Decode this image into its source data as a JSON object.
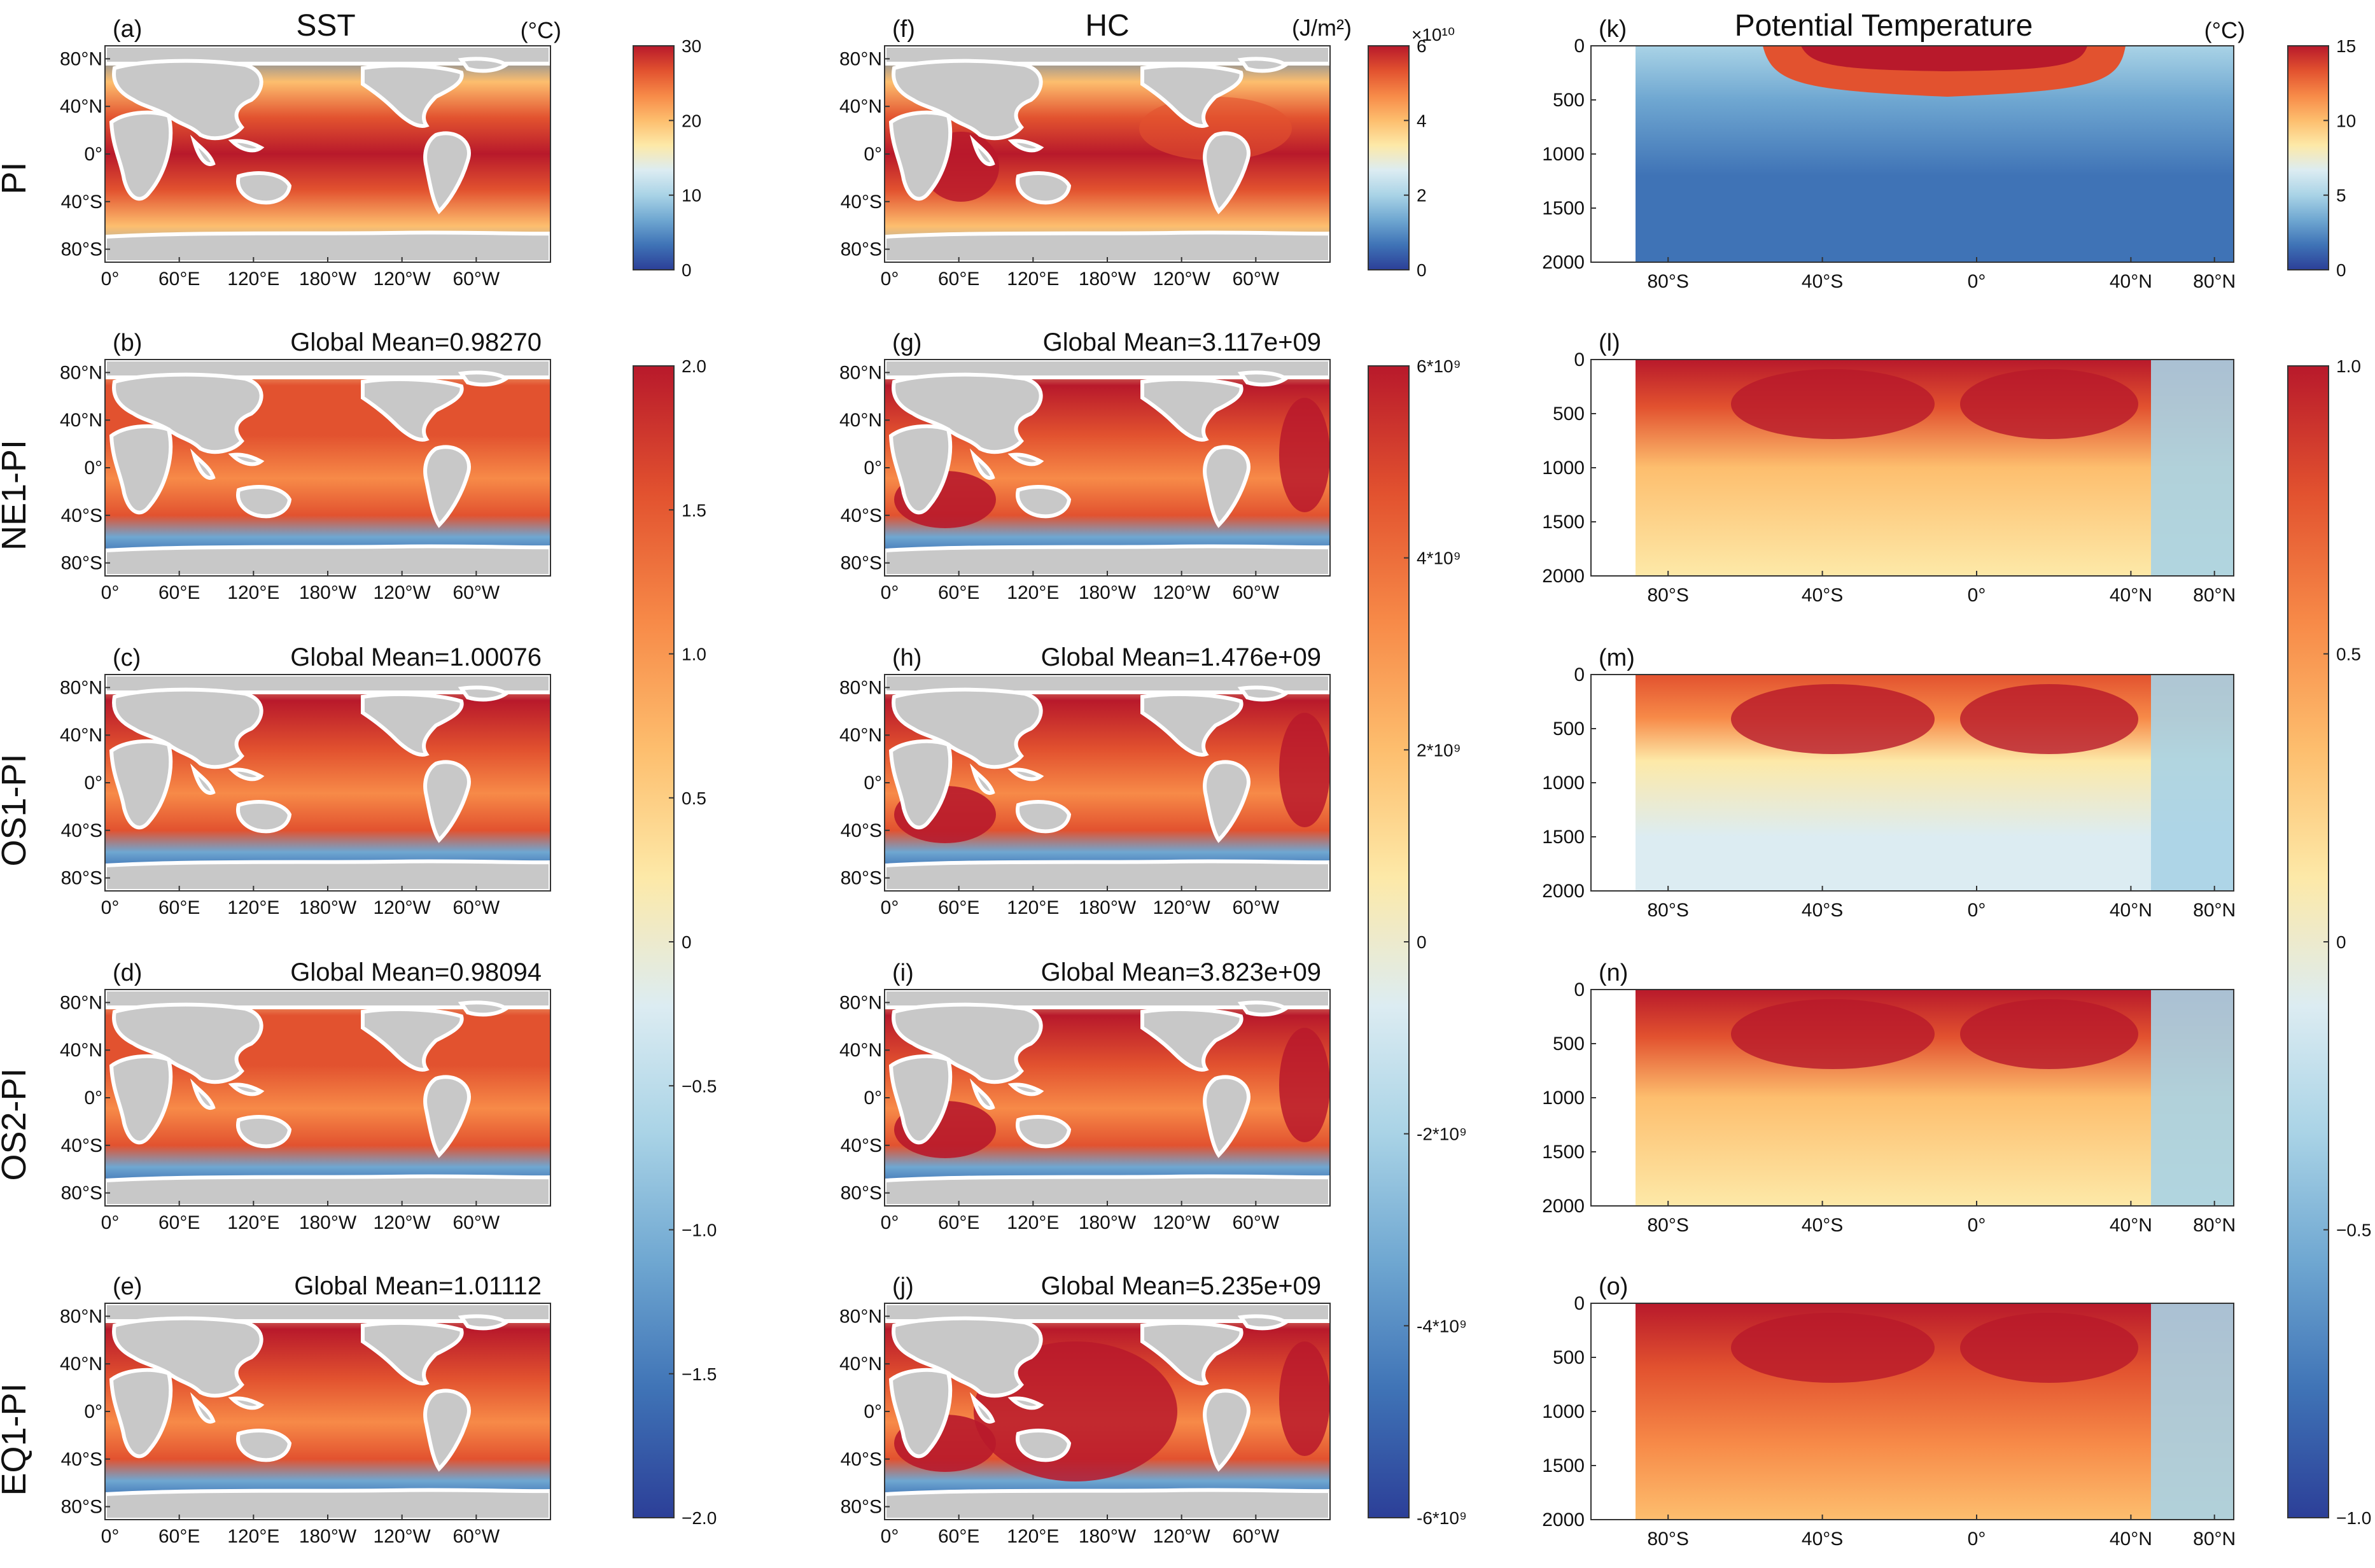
{
  "column_titles": {
    "sst": "SST",
    "hc": "HC",
    "pt": "Potential Temperature"
  },
  "units": {
    "sst": "(°C)",
    "hc": "(J/m²)",
    "pt": "(°C)",
    "hc_exponent": "×10¹⁰"
  },
  "row_labels": [
    "PI",
    "NE1-PI",
    "OS1-PI",
    "OS2-PI",
    "EQ1-PI"
  ],
  "panel_letters": [
    "(a)",
    "(b)",
    "(c)",
    "(d)",
    "(e)",
    "(f)",
    "(g)",
    "(h)",
    "(i)",
    "(j)",
    "(k)",
    "(l)",
    "(m)",
    "(n)",
    "(o)"
  ],
  "colors": {
    "land": "#c8c8c8",
    "coast": "#ffffff",
    "diverging_ramp": [
      "#2c3f98",
      "#3f73b6",
      "#6fa7d1",
      "#a9d3e6",
      "#dcecf2",
      "#fde9a8",
      "#fdbe6e",
      "#f78a48",
      "#e2522f",
      "#b8192b"
    ]
  },
  "chart_data": [
    {
      "type": "heatmap",
      "panel": "(a)",
      "title": "SST",
      "variable": "SST",
      "units": "°C",
      "row": "PI",
      "map_kind": "lonlat",
      "xticks": [
        "0°",
        "60°E",
        "120°E",
        "180°W",
        "120°W",
        "60°W"
      ],
      "yticks": [
        "80°N",
        "40°N",
        "0°",
        "40°S",
        "80°S"
      ],
      "colorbar": {
        "range": [
          0,
          30
        ],
        "ticks": [
          "30",
          "20",
          "10",
          "0"
        ]
      }
    },
    {
      "type": "heatmap",
      "panel": "(b)",
      "title": "Global Mean=0.98270",
      "global_mean": 0.9827,
      "row": "NE1-PI",
      "map_kind": "lonlat",
      "xticks": [
        "0°",
        "60°E",
        "120°E",
        "180°W",
        "120°W",
        "60°W"
      ],
      "yticks": [
        "80°N",
        "40°N",
        "0°",
        "40°S",
        "80°S"
      ],
      "colorbar": {
        "range": [
          -2,
          2
        ],
        "ticks": [
          "2.0",
          "1.5",
          "1.0",
          "0.5",
          "0",
          "−0.5",
          "−1.0",
          "−1.5",
          "−2.0"
        ]
      }
    },
    {
      "type": "heatmap",
      "panel": "(c)",
      "title": "Global Mean=1.00076",
      "global_mean": 1.00076,
      "row": "OS1-PI",
      "map_kind": "lonlat",
      "xticks": [
        "0°",
        "60°E",
        "120°E",
        "180°W",
        "120°W",
        "60°W"
      ],
      "yticks": [
        "80°N",
        "40°N",
        "0°",
        "40°S",
        "80°S"
      ],
      "colorbar": {
        "range": [
          -2,
          2
        ],
        "ticks": [
          "2.0",
          "1.5",
          "1.0",
          "0.5",
          "0",
          "−0.5",
          "−1.0",
          "−1.5",
          "−2.0"
        ]
      }
    },
    {
      "type": "heatmap",
      "panel": "(d)",
      "title": "Global Mean=0.98094",
      "global_mean": 0.98094,
      "row": "OS2-PI",
      "map_kind": "lonlat",
      "xticks": [
        "0°",
        "60°E",
        "120°E",
        "180°W",
        "120°W",
        "60°W"
      ],
      "yticks": [
        "80°N",
        "40°N",
        "0°",
        "40°S",
        "80°S"
      ],
      "colorbar": {
        "range": [
          -2,
          2
        ],
        "ticks": [
          "2.0",
          "1.5",
          "1.0",
          "0.5",
          "0",
          "−0.5",
          "−1.0",
          "−1.5",
          "−2.0"
        ]
      }
    },
    {
      "type": "heatmap",
      "panel": "(e)",
      "title": "Global Mean=1.01112",
      "global_mean": 1.01112,
      "row": "EQ1-PI",
      "map_kind": "lonlat",
      "xticks": [
        "0°",
        "60°E",
        "120°E",
        "180°W",
        "120°W",
        "60°W"
      ],
      "yticks": [
        "80°N",
        "40°N",
        "0°",
        "40°S",
        "80°S"
      ],
      "colorbar": {
        "range": [
          -2,
          2
        ],
        "ticks": [
          "2.0",
          "1.5",
          "1.0",
          "0.5",
          "0",
          "−0.5",
          "−1.0",
          "−1.5",
          "−2.0"
        ]
      }
    },
    {
      "type": "heatmap",
      "panel": "(f)",
      "title": "HC",
      "variable": "HC",
      "units": "J/m²",
      "row": "PI",
      "map_kind": "lonlat",
      "xticks": [
        "0°",
        "60°E",
        "120°E",
        "180°W",
        "120°W",
        "60°W"
      ],
      "yticks": [
        "80°N",
        "40°N",
        "0°",
        "40°S",
        "80°S"
      ],
      "colorbar": {
        "range": [
          0,
          6
        ],
        "ticks": [
          "6",
          "4",
          "2",
          "0"
        ],
        "multiplier": "×10¹⁰"
      }
    },
    {
      "type": "heatmap",
      "panel": "(g)",
      "title": "Global Mean=3.117e+09",
      "global_mean": 3117000000,
      "row": "NE1-PI",
      "map_kind": "lonlat",
      "xticks": [
        "0°",
        "60°E",
        "120°E",
        "180°W",
        "120°W",
        "60°W"
      ],
      "yticks": [
        "80°N",
        "40°N",
        "0°",
        "40°S",
        "80°S"
      ],
      "colorbar": {
        "range": [
          -6000000000,
          6000000000
        ],
        "ticks": [
          "6*10⁹",
          "4*10⁹",
          "2*10⁹",
          "0",
          "-2*10⁹",
          "-4*10⁹",
          "-6*10⁹"
        ]
      }
    },
    {
      "type": "heatmap",
      "panel": "(h)",
      "title": "Global Mean=1.476e+09",
      "global_mean": 1476000000,
      "row": "OS1-PI",
      "map_kind": "lonlat",
      "xticks": [
        "0°",
        "60°E",
        "120°E",
        "180°W",
        "120°W",
        "60°W"
      ],
      "yticks": [
        "80°N",
        "40°N",
        "0°",
        "40°S",
        "80°S"
      ],
      "colorbar": {
        "range": [
          -6000000000,
          6000000000
        ],
        "ticks": [
          "6*10⁹",
          "4*10⁹",
          "2*10⁹",
          "0",
          "-2*10⁹",
          "-4*10⁹",
          "-6*10⁹"
        ]
      }
    },
    {
      "type": "heatmap",
      "panel": "(i)",
      "title": "Global Mean=3.823e+09",
      "global_mean": 3823000000,
      "row": "OS2-PI",
      "map_kind": "lonlat",
      "xticks": [
        "0°",
        "60°E",
        "120°E",
        "180°W",
        "120°W",
        "60°W"
      ],
      "yticks": [
        "80°N",
        "40°N",
        "0°",
        "40°S",
        "80°S"
      ],
      "colorbar": {
        "range": [
          -6000000000,
          6000000000
        ],
        "ticks": [
          "6*10⁹",
          "4*10⁹",
          "2*10⁹",
          "0",
          "-2*10⁹",
          "-4*10⁹",
          "-6*10⁹"
        ]
      }
    },
    {
      "type": "heatmap",
      "panel": "(j)",
      "title": "Global Mean=5.235e+09",
      "global_mean": 5235000000,
      "row": "EQ1-PI",
      "map_kind": "lonlat",
      "xticks": [
        "0°",
        "60°E",
        "120°E",
        "180°W",
        "120°W",
        "60°W"
      ],
      "yticks": [
        "80°N",
        "40°N",
        "0°",
        "40°S",
        "80°S"
      ],
      "colorbar": {
        "range": [
          -6000000000,
          6000000000
        ],
        "ticks": [
          "6*10⁹",
          "4*10⁹",
          "2*10⁹",
          "0",
          "-2*10⁹",
          "-4*10⁹",
          "-6*10⁹"
        ]
      }
    },
    {
      "type": "heatmap",
      "panel": "(k)",
      "title": "Potential Temperature",
      "units": "°C",
      "row": "PI",
      "map_kind": "section",
      "xticks": [
        "80°S",
        "40°S",
        "0°",
        "40°N",
        "80°N"
      ],
      "yticks": [
        "0",
        "500",
        "1000",
        "1500",
        "2000"
      ],
      "ylim": [
        2000,
        0
      ],
      "colorbar": {
        "range": [
          0,
          15
        ],
        "ticks": [
          "15",
          "10",
          "5",
          "0"
        ]
      }
    },
    {
      "type": "heatmap",
      "panel": "(l)",
      "title": "",
      "row": "NE1-PI",
      "map_kind": "section",
      "xticks": [
        "80°S",
        "40°S",
        "0°",
        "40°N",
        "80°N"
      ],
      "yticks": [
        "0",
        "500",
        "1000",
        "1500",
        "2000"
      ],
      "ylim": [
        2000,
        0
      ],
      "colorbar": {
        "range": [
          -1.25,
          1.25
        ],
        "ticks": [
          "1.0",
          "0.5",
          "0",
          "−0.5",
          "−1.0"
        ]
      }
    },
    {
      "type": "heatmap",
      "panel": "(m)",
      "title": "",
      "row": "OS1-PI",
      "map_kind": "section",
      "xticks": [
        "80°S",
        "40°S",
        "0°",
        "40°N",
        "80°N"
      ],
      "yticks": [
        "0",
        "500",
        "1000",
        "1500",
        "2000"
      ],
      "ylim": [
        2000,
        0
      ],
      "colorbar": {
        "range": [
          -1.25,
          1.25
        ],
        "ticks": [
          "1.0",
          "0.5",
          "0",
          "−0.5",
          "−1.0"
        ]
      }
    },
    {
      "type": "heatmap",
      "panel": "(n)",
      "title": "",
      "row": "OS2-PI",
      "map_kind": "section",
      "xticks": [
        "80°S",
        "40°S",
        "0°",
        "40°N",
        "80°N"
      ],
      "yticks": [
        "0",
        "500",
        "1000",
        "1500",
        "2000"
      ],
      "ylim": [
        2000,
        0
      ],
      "colorbar": {
        "range": [
          -1.25,
          1.25
        ],
        "ticks": [
          "1.0",
          "0.5",
          "0",
          "−0.5",
          "−1.0"
        ]
      }
    },
    {
      "type": "heatmap",
      "panel": "(o)",
      "title": "",
      "row": "EQ1-PI",
      "map_kind": "section",
      "xticks": [
        "80°S",
        "40°S",
        "0°",
        "40°N",
        "80°N"
      ],
      "yticks": [
        "0",
        "500",
        "1000",
        "1500",
        "2000"
      ],
      "ylim": [
        2000,
        0
      ],
      "colorbar": {
        "range": [
          -1.25,
          1.25
        ],
        "ticks": [
          "1.0",
          "0.5",
          "0",
          "−0.5",
          "−1.0"
        ]
      }
    }
  ]
}
